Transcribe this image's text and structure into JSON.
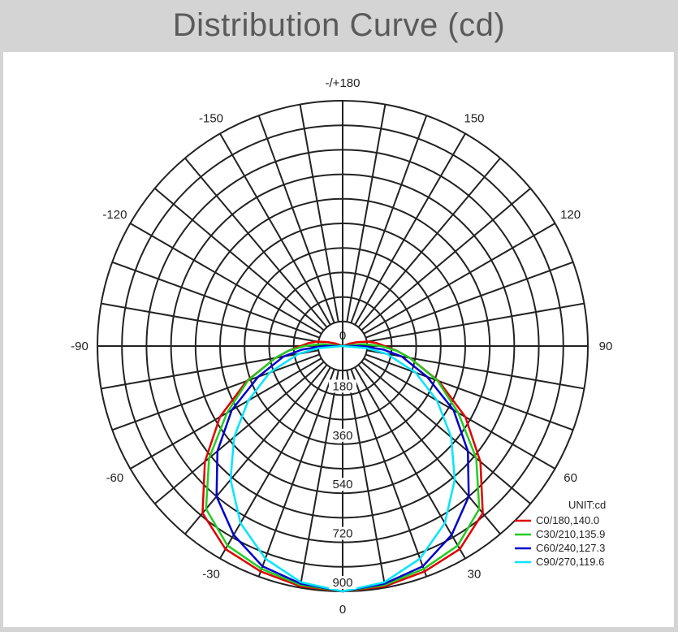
{
  "title": "Distribution Curve (cd)",
  "chart_data": {
    "type": "polar",
    "unit_label": "UNIT:cd",
    "angle_labels": [
      {
        "angle": 180,
        "text": "-/+180"
      },
      {
        "angle": -150,
        "text": "-150"
      },
      {
        "angle": 150,
        "text": "150"
      },
      {
        "angle": -120,
        "text": "-120"
      },
      {
        "angle": 120,
        "text": "120"
      },
      {
        "angle": -90,
        "text": "-90"
      },
      {
        "angle": 90,
        "text": "90"
      },
      {
        "angle": -60,
        "text": "-60"
      },
      {
        "angle": 60,
        "text": "60"
      },
      {
        "angle": -30,
        "text": "-30"
      },
      {
        "angle": 30,
        "text": "30"
      },
      {
        "angle": 0,
        "text": "0"
      }
    ],
    "radial_labels": [
      "0",
      "180",
      "360",
      "540",
      "720",
      "900"
    ],
    "radial_values": [
      0,
      180,
      360,
      540,
      720,
      900
    ],
    "r_max": 900,
    "series": [
      {
        "name": "C0/180,140.0",
        "color": "#e00000",
        "angles": [
          0,
          10,
          20,
          30,
          40,
          50,
          60,
          70,
          80,
          85,
          90,
          95,
          100,
          105,
          110,
          115
        ],
        "values": [
          900,
          895,
          880,
          860,
          800,
          660,
          520,
          375,
          250,
          200,
          155,
          125,
          95,
          55,
          25,
          0
        ]
      },
      {
        "name": "C30/210,135.9",
        "color": "#22cc22",
        "angles": [
          0,
          10,
          20,
          30,
          40,
          50,
          60,
          70,
          80,
          85,
          90,
          95,
          100
        ],
        "values": [
          900,
          890,
          870,
          845,
          780,
          640,
          490,
          370,
          250,
          200,
          140,
          80,
          0
        ]
      },
      {
        "name": "C60/240,127.3",
        "color": "#0000cc",
        "angles": [
          0,
          10,
          20,
          30,
          40,
          50,
          60,
          70,
          80,
          85,
          90,
          95
        ],
        "values": [
          900,
          885,
          860,
          800,
          720,
          600,
          470,
          330,
          220,
          150,
          70,
          0
        ]
      },
      {
        "name": "C90/270,119.6",
        "color": "#00e5ff",
        "angles": [
          0,
          10,
          20,
          30,
          40,
          50,
          60,
          70,
          80,
          85,
          90
        ],
        "values": [
          900,
          880,
          830,
          750,
          640,
          520,
          400,
          285,
          165,
          90,
          0
        ]
      }
    ]
  }
}
